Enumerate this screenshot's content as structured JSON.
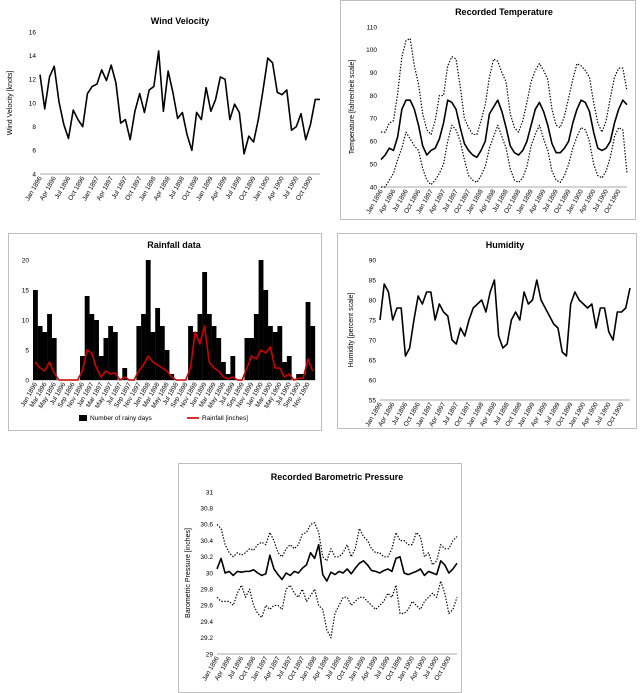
{
  "chart_data": [
    {
      "id": "wind",
      "type": "line",
      "title": "Wind Velocity",
      "ylabel": "Wind Velocity [knots]",
      "xlabel": "",
      "ylim": [
        4,
        16
      ],
      "yticks": [
        4,
        6,
        8,
        10,
        12,
        14,
        16
      ],
      "x_tick_labels": [
        "Jan 1896",
        "Apr 1896",
        "Jul 1896",
        "Oct 1896",
        "Jan 1897",
        "Apr 1897",
        "Jul 1897",
        "Oct 1897",
        "Jan 1898",
        "Apr 1898",
        "Jul 1898",
        "Oct 1898",
        "Jan 1899",
        "Apr 1899",
        "Jul 1899",
        "Oct 1899",
        "Jan 1900",
        "Apr 1900",
        "Jul 1900",
        "Oct 1900"
      ],
      "x_tick_step": 3,
      "n_points": 60,
      "grid": false,
      "series": [
        {
          "name": "",
          "style": "solid",
          "values": [
            12.4,
            9.5,
            12.2,
            13.1,
            10.1,
            8.2,
            7.0,
            9.4,
            8.6,
            8.0,
            10.8,
            11.4,
            11.6,
            12.8,
            11.9,
            13.2,
            11.7,
            8.3,
            8.6,
            6.9,
            9.3,
            10.8,
            9.2,
            11.1,
            11.4,
            14.4,
            9.3,
            12.7,
            10.9,
            8.7,
            9.2,
            7.3,
            6.0,
            9.2,
            8.6,
            11.3,
            9.3,
            10.3,
            12.2,
            12.0,
            8.6,
            9.9,
            9.2,
            5.7,
            7.2,
            6.7,
            8.6,
            11.1,
            13.8,
            13.4,
            10.9,
            10.7,
            11.1,
            7.7,
            8.0,
            9.1,
            6.9,
            8.2,
            10.3,
            10.3
          ]
        }
      ]
    },
    {
      "id": "temperature",
      "type": "line",
      "title": "Recorded Temperature",
      "ylabel": "Temperature [fahrenheit scale]",
      "xlabel": "",
      "ylim": [
        40,
        110
      ],
      "yticks": [
        40,
        50,
        60,
        70,
        80,
        90,
        100,
        110
      ],
      "x_tick_labels": [
        "Jan 1896",
        "Apr 1896",
        "Jul 1896",
        "Oct 1896",
        "Jan 1897",
        "Apr 1897",
        "Jul 1897",
        "Oct 1897",
        "Jan 1898",
        "Apr 1898",
        "Jul 1898",
        "Oct 1898",
        "Jan 1899",
        "Apr 1899",
        "Jul 1899",
        "Oct 1899",
        "Jan 1900",
        "Apr 1900",
        "Jul 1900",
        "Oct 1900"
      ],
      "x_tick_step": 3,
      "n_points": 60,
      "grid": false,
      "series": [
        {
          "name": "",
          "style": "solid",
          "values": [
            52,
            54,
            57,
            56,
            62,
            74,
            78,
            78,
            74,
            67,
            58,
            54,
            56,
            57,
            61,
            68,
            78,
            77,
            74,
            66,
            59,
            56,
            54,
            53,
            56,
            60,
            72,
            75,
            78,
            73,
            66,
            58,
            55,
            54,
            56,
            60,
            67,
            74,
            77,
            73,
            67,
            59,
            55,
            55,
            57,
            60,
            68,
            74,
            78,
            77,
            73,
            64,
            57,
            56,
            57,
            60,
            68,
            74,
            78,
            76
          ]
        },
        {
          "name": "",
          "style": "dotted",
          "values": [
            64,
            64,
            68,
            69,
            81,
            97,
            104,
            105,
            93,
            85,
            72,
            65,
            63,
            69,
            80,
            80,
            93,
            97,
            96,
            84,
            70,
            66,
            63,
            63,
            69,
            76,
            88,
            96,
            95,
            90,
            86,
            72,
            66,
            64,
            69,
            77,
            86,
            91,
            94,
            91,
            87,
            74,
            67,
            66,
            71,
            79,
            87,
            94,
            93,
            91,
            88,
            77,
            68,
            64,
            69,
            79,
            88,
            92,
            92,
            82
          ]
        },
        {
          "name": "",
          "style": "dotted",
          "values": [
            40,
            40,
            43,
            46,
            52,
            57,
            64,
            61,
            58,
            56,
            48,
            43,
            41,
            43,
            46,
            50,
            60,
            67,
            65,
            60,
            52,
            45,
            43,
            42,
            45,
            49,
            57,
            62,
            67,
            62,
            57,
            48,
            43,
            42,
            44,
            49,
            58,
            63,
            67,
            61,
            56,
            47,
            43,
            42,
            45,
            50,
            57,
            62,
            66,
            65,
            60,
            50,
            45,
            44,
            47,
            53,
            62,
            66,
            65,
            46
          ]
        }
      ]
    },
    {
      "id": "rainfall",
      "type": "bar",
      "title": "Rainfall data",
      "ylabel": "",
      "xlabel": "",
      "ylim": [
        0,
        20
      ],
      "yticks": [
        0,
        5,
        10,
        15,
        20
      ],
      "x_tick_labels": [
        "Jan 1896",
        "Mar 1896",
        "May 1896",
        "Jul 1896",
        "Sep 1896",
        "Nov 1896",
        "Jan 1897",
        "Mar 1897",
        "May 1897",
        "Jul 1897",
        "Sep 1897",
        "Nov 1897",
        "Jan 1898",
        "Mar 1898",
        "May 1898",
        "Jul 1898",
        "Sep 1898",
        "Nov 1898",
        "Jan 1899",
        "Mar 1899",
        "May 1899",
        "Jul 1899",
        "Sep 1899",
        "Nov 1899",
        "Jan 1900",
        "Mar 1900",
        "May 1900",
        "Jul 1900",
        "Sep 1900",
        "Nov 1900"
      ],
      "x_tick_step": 2,
      "n_points": 60,
      "legend_position": "bottom",
      "grid": false,
      "series": [
        {
          "name": "Number of rainy days",
          "kind": "bar",
          "color": "#000000",
          "values": [
            15,
            9,
            8,
            11,
            7,
            0,
            0,
            0,
            0,
            0,
            4,
            14,
            11,
            10,
            4,
            7,
            9,
            8,
            0,
            2,
            0,
            0,
            9,
            11,
            20,
            8,
            12,
            9,
            5,
            1,
            0,
            0,
            0,
            9,
            8,
            11,
            18,
            11,
            9,
            7,
            3,
            1,
            4,
            0,
            0,
            7,
            7,
            11,
            20,
            15,
            9,
            8,
            9,
            3,
            4,
            0,
            1,
            1,
            13,
            9
          ]
        },
        {
          "name": "Rainfall [inches]",
          "kind": "line",
          "color": "#cc0000",
          "values": [
            3,
            2,
            1.5,
            3,
            1.2,
            0,
            0,
            0,
            0,
            0,
            1.5,
            5,
            4.5,
            2,
            0.5,
            1.5,
            1,
            1.2,
            0,
            0.5,
            0,
            0,
            1.5,
            2.5,
            4,
            3,
            2.5,
            2,
            1.5,
            0.5,
            0,
            0,
            0,
            2,
            8,
            6,
            9,
            3,
            2,
            1.5,
            0.5,
            0.2,
            0.5,
            0,
            0,
            2,
            4,
            3.5,
            5,
            4.5,
            5.5,
            2,
            2,
            0.5,
            1,
            0,
            0.3,
            0.3,
            3.5,
            1.5
          ]
        }
      ]
    },
    {
      "id": "humidity",
      "type": "line",
      "title": "Humidity",
      "ylabel": "Humidity [percent scale]",
      "xlabel": "",
      "ylim": [
        55,
        90
      ],
      "yticks": [
        55,
        60,
        65,
        70,
        75,
        80,
        85,
        90
      ],
      "x_tick_labels": [
        "Jan 1896",
        "Apr 1896",
        "Jul 1896",
        "Oct 1896",
        "Jan 1897",
        "Apr 1897",
        "Jul 1897",
        "Oct 1897",
        "Jan 1898",
        "Apr 1898",
        "Jul 1898",
        "Oct 1898",
        "Jan 1899",
        "Apr 1899",
        "Jul 1899",
        "Oct 1899",
        "Jan 1900",
        "Apr 1900",
        "Jul 1900",
        "Oct 1900"
      ],
      "x_tick_step": 3,
      "n_points": 60,
      "grid": false,
      "series": [
        {
          "name": "",
          "style": "solid",
          "values": [
            75,
            84,
            82,
            75,
            78,
            78,
            66,
            68,
            75,
            81,
            79,
            82,
            82,
            75,
            79,
            77,
            76,
            70,
            69,
            73,
            71,
            75,
            78,
            79,
            80,
            77,
            82,
            85,
            71,
            68,
            69,
            75,
            77,
            75,
            82,
            79,
            80,
            85,
            80,
            78,
            76,
            74,
            73,
            67,
            66,
            79,
            82,
            80,
            79,
            78,
            79,
            73,
            78,
            78,
            72,
            70,
            77,
            77,
            78,
            83
          ]
        }
      ]
    },
    {
      "id": "pressure",
      "type": "line",
      "title": "Recorded Barometric Pressure",
      "ylabel": "Barometric Pressure [inches]",
      "xlabel": "",
      "ylim": [
        29,
        31
      ],
      "yticks": [
        29,
        29.2,
        29.4,
        29.6,
        29.8,
        30,
        30.2,
        30.4,
        30.6,
        30.8,
        31
      ],
      "x_tick_labels": [
        "Jan 1896",
        "Apr 1896",
        "Jul 1896",
        "Oct 1896",
        "Jan 1897",
        "Apr 1897",
        "Jul 1897",
        "Oct 1897",
        "Jan 1898",
        "Apr 1898",
        "Jul 1898",
        "Oct 1898",
        "Jan 1899",
        "Apr 1899",
        "Jul 1899",
        "Oct 1899",
        "Jan 1900",
        "Apr 1900",
        "Jul 1900",
        "Oct 1900"
      ],
      "x_tick_step": 3,
      "n_points": 60,
      "grid": false,
      "series": [
        {
          "name": "",
          "style": "solid",
          "values": [
            30.05,
            30.18,
            30.0,
            30.02,
            29.97,
            30.02,
            30.01,
            30.02,
            30.02,
            30.04,
            30.0,
            29.97,
            29.99,
            30.22,
            30.05,
            29.98,
            29.92,
            30.0,
            29.97,
            30.02,
            30.0,
            30.06,
            30.1,
            30.25,
            30.18,
            30.35,
            29.98,
            29.9,
            30.01,
            29.98,
            30.02,
            30.0,
            30.05,
            29.99,
            30.06,
            30.12,
            30.15,
            30.1,
            30.03,
            30.02,
            30.0,
            30.03,
            30.05,
            30.02,
            30.18,
            30.2,
            30.0,
            29.98,
            30.0,
            30.02,
            30.05,
            29.97,
            30.02,
            30.0,
            29.98,
            30.15,
            30.1,
            30.0,
            30.05,
            30.12
          ]
        },
        {
          "name": "",
          "style": "dotted",
          "values": [
            30.6,
            30.55,
            30.35,
            30.25,
            30.2,
            30.25,
            30.22,
            30.25,
            30.3,
            30.28,
            30.35,
            30.38,
            30.35,
            30.5,
            30.4,
            30.25,
            30.2,
            30.3,
            30.35,
            30.3,
            30.35,
            30.48,
            30.5,
            30.6,
            30.62,
            30.5,
            30.2,
            30.15,
            30.3,
            30.2,
            30.2,
            30.25,
            30.35,
            30.2,
            30.3,
            30.55,
            30.45,
            30.4,
            30.3,
            30.25,
            30.25,
            30.2,
            30.2,
            30.3,
            30.5,
            30.4,
            30.4,
            30.35,
            30.35,
            30.5,
            30.45,
            30.2,
            30.25,
            30.1,
            30.15,
            30.35,
            30.3,
            30.3,
            30.4,
            30.45
          ]
        },
        {
          "name": "",
          "style": "dotted",
          "values": [
            29.7,
            29.65,
            29.65,
            29.65,
            29.6,
            29.75,
            29.85,
            29.7,
            29.8,
            29.6,
            29.5,
            29.45,
            29.6,
            29.55,
            29.6,
            29.6,
            29.55,
            29.8,
            29.85,
            29.75,
            29.7,
            29.8,
            29.65,
            29.72,
            29.8,
            29.6,
            29.55,
            29.3,
            29.2,
            29.5,
            29.6,
            29.7,
            29.7,
            29.6,
            29.65,
            29.7,
            29.7,
            29.65,
            29.6,
            29.55,
            29.6,
            29.65,
            29.75,
            29.7,
            29.85,
            29.5,
            29.5,
            29.55,
            29.65,
            29.6,
            29.55,
            29.65,
            29.7,
            29.75,
            29.7,
            29.9,
            29.75,
            29.5,
            29.55,
            29.7
          ]
        }
      ]
    }
  ]
}
